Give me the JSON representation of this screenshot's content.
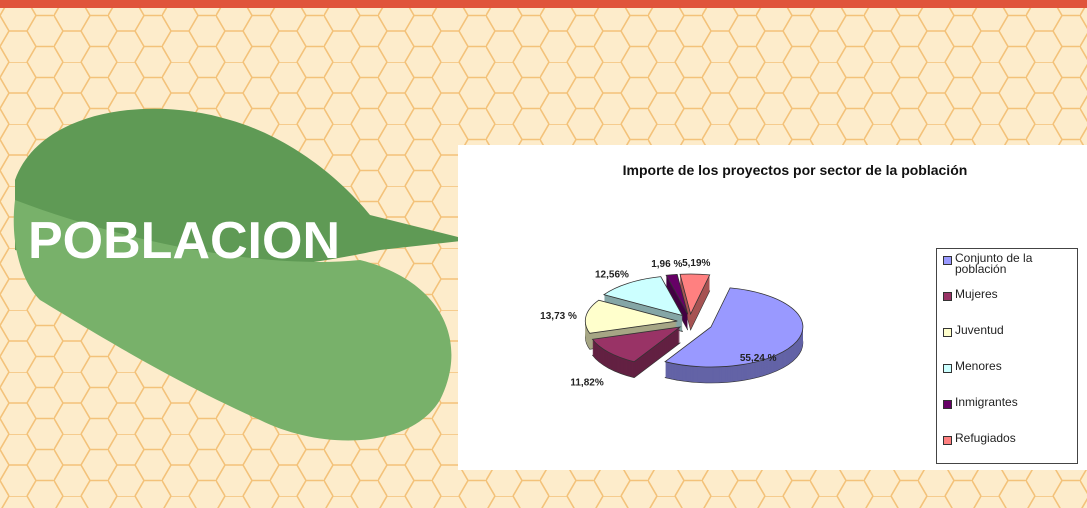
{
  "slide": {
    "title": "POBLACION"
  },
  "chart_data": {
    "type": "pie",
    "title": "Importe de los proyectos por sector de la población",
    "categories": [
      "Conjunto de la población",
      "Mujeres",
      "Juventud",
      "Menores",
      "Inmigrantes",
      "Refugiados"
    ],
    "values": [
      55.24,
      11.82,
      13.73,
      12.56,
      1.96,
      5.19
    ],
    "value_labels": [
      "55,24 %",
      "11,82%",
      "13,73 %",
      "12,56%",
      "1,96 %",
      "5,19%"
    ],
    "colors": [
      "#9999ff",
      "#993366",
      "#ffffcc",
      "#ccffff",
      "#660066",
      "#ff8080"
    ],
    "legend": "right"
  }
}
